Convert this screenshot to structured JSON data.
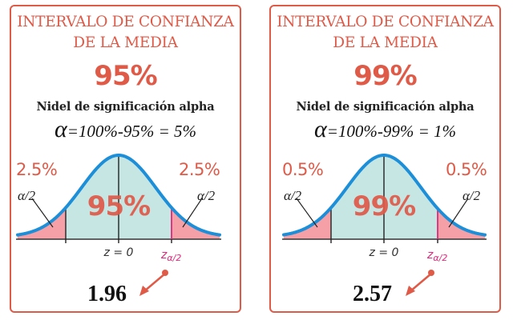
{
  "colors": {
    "accent": "#e05a48",
    "curve": "#1d8fd8",
    "center_fill": "#c6e6e4",
    "tail_fill": "#f4a0a6",
    "critical_line": "#e0287c",
    "text_dark": "#111111"
  },
  "cards": [
    {
      "title_line1": "INTERVALO DE CONFIANZA",
      "title_line2": "DE LA MEDIA",
      "confidence": "95%",
      "subtitle": "Nidel de significación alpha",
      "formula_symbol": "α",
      "formula_rest": "=100%-95% = 5%",
      "left_tail_pct": "2.5%",
      "right_tail_pct": "2.5%",
      "left_alpha_label": "α/2",
      "right_alpha_label": "α/2",
      "center_pct": "95%",
      "z_center_label": "z = 0",
      "z_critical_symbol": "z",
      "z_critical_subscript": "α/2",
      "critical_value": "1.96"
    },
    {
      "title_line1": "INTERVALO DE CONFIANZA",
      "title_line2": "DE LA MEDIA",
      "confidence": "99%",
      "subtitle": "Nidel de significación alpha",
      "formula_symbol": "α",
      "formula_rest": "=100%-99% = 1%",
      "left_tail_pct": "0.5%",
      "right_tail_pct": "0.5%",
      "left_alpha_label": "α/2",
      "right_alpha_label": "α/2",
      "center_pct": "99%",
      "z_center_label": "z = 0",
      "z_critical_symbol": "z",
      "z_critical_subscript": "α/2",
      "critical_value": "2.57"
    }
  ]
}
